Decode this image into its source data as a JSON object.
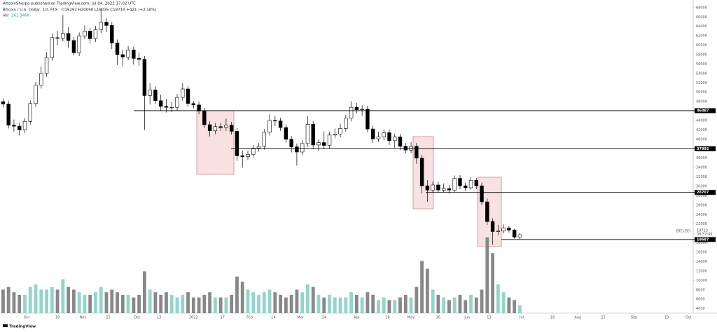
{
  "header": {
    "publisher": "AltcoinSherpa published on TradingView.com, Jul 04, 2022 17:02 UTC",
    "symbol": "Bitcoin / U.S. Dollar, 1D, FTX",
    "ohlc": "O19292 H20090 L19035 C19713 +421 (+2.18%)",
    "vol_label": "Vol",
    "vol_value": "261.946K"
  },
  "footer": {
    "brand": "TradingView"
  },
  "chart_data": {
    "type": "candlestick",
    "xlim": [
      -14.7,
      367.6
    ],
    "xticks": [
      {
        "value": 0,
        "label": "Oct"
      },
      {
        "value": 17,
        "label": "18"
      },
      {
        "value": 31,
        "label": "Nov"
      },
      {
        "value": 45,
        "label": "15"
      },
      {
        "value": 61,
        "label": "Dec"
      },
      {
        "value": 73,
        "label": "13"
      },
      {
        "value": 92,
        "label": "2022"
      },
      {
        "value": 108,
        "label": "17"
      },
      {
        "value": 123,
        "label": "Feb"
      },
      {
        "value": 136,
        "label": "14"
      },
      {
        "value": 151,
        "label": "Mar"
      },
      {
        "value": 164,
        "label": "14"
      },
      {
        "value": 182,
        "label": "Apr"
      },
      {
        "value": 199,
        "label": "18"
      },
      {
        "value": 212,
        "label": "May"
      },
      {
        "value": 227,
        "label": "16"
      },
      {
        "value": 243,
        "label": "Jun"
      },
      {
        "value": 255,
        "label": "13"
      },
      {
        "value": 273,
        "label": "Jul"
      },
      {
        "value": 290,
        "label": "18"
      },
      {
        "value": 304,
        "label": "Aug"
      },
      {
        "value": 318,
        "label": "15"
      },
      {
        "value": 335,
        "label": "Sep"
      },
      {
        "value": 353,
        "label": "19"
      },
      {
        "value": 365,
        "label": "Oct"
      }
    ],
    "ylim": [
      3049,
      69616
    ],
    "yticks": [
      4000,
      6000,
      8000,
      10000,
      12000,
      14000,
      16000,
      18000,
      20000,
      22000,
      24000,
      26000,
      28000,
      30000,
      32000,
      34000,
      36000,
      38000,
      40000,
      42000,
      44000,
      46000,
      48000,
      50000,
      52000,
      54000,
      56000,
      58000,
      60000,
      62000,
      64000,
      66000,
      68000
    ],
    "y2lim": [
      0,
      12000
    ],
    "grid": false,
    "candle_up": "#ffffff",
    "candle_down": "#000000",
    "candle_outline": "#000000",
    "volume_up": "#93d4cb",
    "volume_down": "#888888",
    "x": [
      -13,
      -10,
      -7,
      -4,
      -1,
      2,
      5,
      8,
      11,
      14,
      17,
      20,
      23,
      26,
      29,
      32,
      35,
      38,
      41,
      44,
      47,
      50,
      53,
      56,
      59,
      62,
      65,
      68,
      71,
      74,
      77,
      80,
      83,
      86,
      89,
      92,
      95,
      98,
      101,
      104,
      107,
      110,
      113,
      116,
      119,
      122,
      125,
      128,
      131,
      134,
      137,
      140,
      143,
      146,
      149,
      152,
      155,
      158,
      161,
      164,
      167,
      170,
      173,
      176,
      179,
      182,
      185,
      188,
      191,
      194,
      197,
      200,
      203,
      206,
      209,
      212,
      215,
      218,
      221,
      224,
      227,
      230,
      233,
      236,
      239,
      242,
      245,
      248,
      251,
      254,
      257,
      260,
      263,
      266,
      269,
      272
    ],
    "open": [
      48000,
      47500,
      43000,
      42800,
      42000,
      43800,
      47600,
      51500,
      54000,
      57400,
      61600,
      61500,
      62500,
      61000,
      58400,
      62000,
      63000,
      61400,
      63300,
      64900,
      64200,
      60500,
      58000,
      57500,
      59000,
      57200,
      57000,
      49300,
      50500,
      48200,
      47000,
      46800,
      46800,
      48900,
      50700,
      47600,
      47300,
      46000,
      43100,
      41800,
      42700,
      42500,
      43000,
      41700,
      36500,
      36300,
      36800,
      38100,
      38500,
      41500,
      44000,
      43900,
      42500,
      40000,
      38400,
      37300,
      39100,
      43200,
      38800,
      39300,
      38700,
      40900,
      41100,
      42300,
      44500,
      46800,
      46300,
      46400,
      42200,
      40100,
      40500,
      41400,
      39700,
      40500,
      38500,
      37700,
      38500,
      36000,
      30100,
      29200,
      30300,
      29200,
      29500,
      29200,
      31700,
      30100,
      29700,
      31300,
      30100,
      26700,
      22500,
      20400,
      20500,
      21100,
      20700,
      19200
    ],
    "high": [
      48700,
      48200,
      44200,
      43500,
      44500,
      48300,
      52200,
      55500,
      58500,
      62500,
      63000,
      66400,
      63800,
      61700,
      62700,
      64200,
      63700,
      64100,
      67800,
      65700,
      64900,
      61200,
      59100,
      59800,
      59700,
      58400,
      57700,
      51900,
      51200,
      49500,
      48600,
      47900,
      49600,
      51900,
      51400,
      48100,
      48000,
      46700,
      43800,
      43400,
      43500,
      44400,
      43700,
      42400,
      37600,
      37500,
      38800,
      39200,
      42200,
      45300,
      45000,
      44600,
      43200,
      40700,
      39100,
      39800,
      44900,
      43900,
      40000,
      41700,
      41600,
      42300,
      43300,
      45200,
      48100,
      47700,
      47200,
      47100,
      42900,
      41600,
      42100,
      42100,
      41200,
      41200,
      39200,
      39400,
      39200,
      36700,
      31300,
      31000,
      31000,
      30600,
      30300,
      32300,
      32400,
      30800,
      32000,
      31800,
      30800,
      27400,
      23200,
      21800,
      21900,
      21600,
      21000,
      20100
    ],
    "low": [
      46800,
      42300,
      41600,
      40800,
      41300,
      43100,
      46900,
      50800,
      53300,
      56700,
      60000,
      60800,
      59500,
      57800,
      57700,
      61300,
      60300,
      60700,
      62600,
      62800,
      59200,
      55800,
      55500,
      56800,
      55900,
      55600,
      42000,
      47400,
      47500,
      46000,
      45700,
      45800,
      46100,
      48200,
      46900,
      46600,
      45300,
      42400,
      40600,
      41100,
      41800,
      41800,
      41000,
      35400,
      34000,
      35600,
      36100,
      37400,
      37800,
      40800,
      42800,
      41800,
      39300,
      37200,
      34400,
      36600,
      38400,
      37900,
      37600,
      37900,
      38000,
      40200,
      40400,
      41600,
      43800,
      45500,
      45000,
      41500,
      39200,
      39400,
      39800,
      38800,
      38200,
      37700,
      37000,
      37000,
      34800,
      28500,
      26700,
      28600,
      28600,
      28700,
      28500,
      28800,
      29400,
      29000,
      29300,
      29400,
      26000,
      21800,
      17600,
      19600,
      20000,
      20200,
      18900,
      18800
    ],
    "close": [
      47500,
      43000,
      42800,
      42000,
      43800,
      47600,
      51500,
      54000,
      57400,
      61600,
      61500,
      62500,
      61000,
      58400,
      62000,
      63000,
      61400,
      63300,
      64900,
      64200,
      60500,
      58000,
      57500,
      59000,
      57200,
      57000,
      49300,
      50500,
      48200,
      47000,
      46800,
      46800,
      48900,
      50700,
      47600,
      47300,
      46000,
      43100,
      41800,
      42700,
      42500,
      43000,
      41700,
      36500,
      36300,
      36800,
      38100,
      38500,
      41500,
      44000,
      43900,
      42500,
      40000,
      38400,
      37300,
      39100,
      43200,
      38800,
      39300,
      38700,
      40900,
      41100,
      42300,
      44500,
      46800,
      46300,
      46400,
      42200,
      40100,
      40500,
      41400,
      39700,
      40500,
      38500,
      37700,
      38500,
      36000,
      30100,
      29200,
      30300,
      29200,
      29500,
      29200,
      31700,
      30100,
      29700,
      31300,
      30100,
      26700,
      22500,
      20400,
      20500,
      21100,
      20700,
      19200,
      19700
    ],
    "volume": [
      900,
      1000,
      800,
      700,
      700,
      1000,
      1100,
      900,
      900,
      1000,
      900,
      1300,
      1000,
      900,
      800,
      700,
      700,
      800,
      1000,
      800,
      900,
      800,
      700,
      700,
      600,
      700,
      1600,
      900,
      800,
      700,
      800,
      700,
      600,
      700,
      800,
      600,
      600,
      700,
      800,
      600,
      600,
      600,
      700,
      1400,
      1200,
      900,
      800,
      700,
      800,
      900,
      800,
      700,
      600,
      700,
      900,
      800,
      1100,
      1000,
      700,
      600,
      700,
      600,
      600,
      600,
      800,
      700,
      600,
      800,
      700,
      500,
      600,
      500,
      500,
      600,
      700,
      600,
      1000,
      2000,
      1700,
      900,
      700,
      600,
      500,
      600,
      700,
      500,
      700,
      600,
      900,
      2900,
      2300,
      1100,
      800,
      600,
      500,
      300
    ],
    "levels": [
      46087,
      37992,
      28707,
      18687
    ],
    "last_price": {
      "symbol": "BTCUSD",
      "value": 19713,
      "countdown": "06:57:44"
    }
  }
}
